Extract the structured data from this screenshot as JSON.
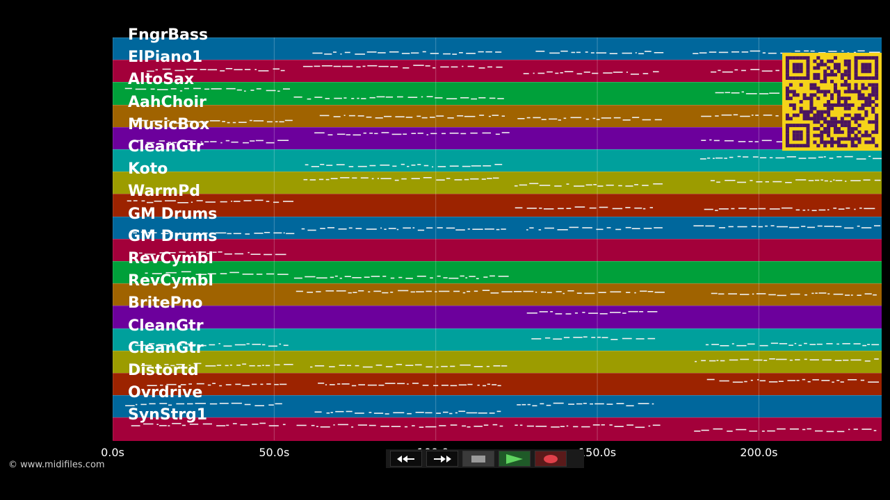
{
  "tracks": [
    {
      "name": "FngrBass",
      "color": "#00679c"
    },
    {
      "name": "ElPiano1",
      "color": "#a3003a"
    },
    {
      "name": "AltoSax",
      "color": "#00a03a"
    },
    {
      "name": "AahChoir",
      "color": "#a06300"
    },
    {
      "name": "MusicBox",
      "color": "#6c009c"
    },
    {
      "name": "CleanGtr",
      "color": "#00a09c"
    },
    {
      "name": "Koto",
      "color": "#9c9c00"
    },
    {
      "name": "WarmPd",
      "color": "#9c2300"
    },
    {
      "name": "GM Drums",
      "color": "#00679c"
    },
    {
      "name": "GM Drums",
      "color": "#a3003a"
    },
    {
      "name": "RevCymbl",
      "color": "#00a03a"
    },
    {
      "name": "RevCymbl",
      "color": "#a06300"
    },
    {
      "name": "BritePno",
      "color": "#6c009c"
    },
    {
      "name": "CleanGtr",
      "color": "#00a09c"
    },
    {
      "name": "CleanGtr",
      "color": "#9c9c00"
    },
    {
      "name": "Distortd",
      "color": "#9c2300"
    },
    {
      "name": "Ovrdrive",
      "color": "#00679c"
    },
    {
      "name": "SynStrg1",
      "color": "#a3003a"
    }
  ],
  "timeline": {
    "ticks": [
      "0.0s",
      "50.0s",
      "100.0s",
      "150.0s",
      "200.0s"
    ],
    "tick_values": [
      0,
      50,
      100,
      150,
      200
    ],
    "range": [
      0,
      238
    ]
  },
  "controls": {
    "rewind": "rewind-icon",
    "forward": "fast-forward-icon",
    "stop": "stop-icon",
    "play": "play-icon",
    "record": "record-icon"
  },
  "copyright": "© www.midifiles.com"
}
